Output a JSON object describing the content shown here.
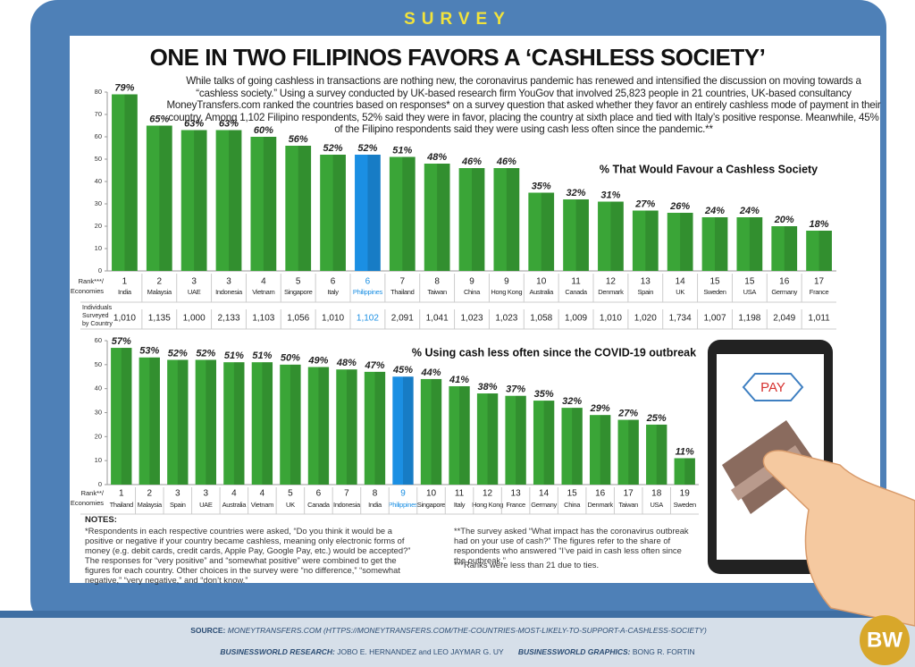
{
  "header": {
    "section": "SURVEY",
    "title": "ONE IN TWO FILIPINOS FAVORS A ‘CASHLESS SOCIETY’",
    "intro": "While talks of going cashless in transactions are nothing new, the coronavirus pandemic has renewed and intensified the discussion on moving towards a “cashless society.” Using a survey conducted by UK-based research firm YouGov that involved 25,823 people in 21 countries, UK-based consultancy MoneyTransfers.com ranked the countries based on responses* on a survey question that asked whether they favor an entirely cashless mode of payment in their country. Among 1,102 Filipino respondents, 52% said they were in favor, placing the country at sixth place and tied with Italy’s positive response. Meanwhile, 45% of the Filipino respondents said they were using cash less often since the pandemic.**"
  },
  "chart_data": [
    {
      "type": "bar",
      "title": "% That Would Favour a Cashless Society",
      "rank_label": [
        "Rank***/",
        "Economies"
      ],
      "ranks": [
        1,
        2,
        3,
        3,
        4,
        5,
        6,
        6,
        7,
        8,
        9,
        9,
        10,
        11,
        12,
        13,
        14,
        15,
        15,
        16,
        17
      ],
      "categories": [
        "India",
        "Malaysia",
        "UAE",
        "Indonesia",
        "Vietnam",
        "Singapore",
        "Italy",
        "Philippines",
        "Thailand",
        "Taiwan",
        "China",
        "Hong Kong",
        "Australia",
        "Canada",
        "Denmark",
        "Spain",
        "UK",
        "Sweden",
        "USA",
        "Germany",
        "France"
      ],
      "values": [
        79,
        65,
        63,
        63,
        60,
        56,
        52,
        52,
        51,
        48,
        46,
        46,
        35,
        32,
        31,
        27,
        26,
        24,
        24,
        20,
        18
      ],
      "value_labels": [
        "79%",
        "65%",
        "63%",
        "63%",
        "60%",
        "56%",
        "52%",
        "52%",
        "51%",
        "48%",
        "46%",
        "46%",
        "35%",
        "32%",
        "31%",
        "27%",
        "26%",
        "24%",
        "24%",
        "20%",
        "18%"
      ],
      "surveyed_label": [
        "Individuals",
        "Surveyed",
        "by Country"
      ],
      "surveyed": [
        "1,010",
        "1,135",
        "1,000",
        "2,133",
        "1,103",
        "1,056",
        "1,010",
        "1,102",
        "2,091",
        "1,041",
        "1,023",
        "1,023",
        "1,058",
        "1,009",
        "1,010",
        "1,020",
        "1,734",
        "1,007",
        "1,198",
        "2,049",
        "1,011"
      ],
      "ylim": [
        0,
        80
      ],
      "yticks": [
        0,
        10,
        20,
        30,
        40,
        50,
        60,
        70,
        80
      ],
      "color": "#3aa537",
      "highlight_category": "Philippines",
      "highlight_color": "#1b8fe3"
    },
    {
      "type": "bar",
      "title": "% Using cash less often since the COVID-19 outbreak",
      "rank_label": [
        "Rank**/",
        "Economies"
      ],
      "ranks": [
        1,
        2,
        3,
        3,
        4,
        4,
        5,
        6,
        7,
        8,
        9,
        10,
        11,
        12,
        13,
        14,
        15,
        16,
        17,
        18,
        19
      ],
      "categories": [
        "Thailand",
        "Malaysia",
        "Spain",
        "UAE",
        "Australia",
        "Vietnam",
        "UK",
        "Canada",
        "Indonesia",
        "India",
        "Philippines",
        "Singapore",
        "Italy",
        "Hong Kong",
        "France",
        "Germany",
        "China",
        "Denmark",
        "Taiwan",
        "USA",
        "Sweden"
      ],
      "values": [
        57,
        53,
        52,
        52,
        51,
        51,
        50,
        49,
        48,
        47,
        45,
        44,
        41,
        38,
        37,
        35,
        32,
        29,
        27,
        25,
        11
      ],
      "value_labels": [
        "57%",
        "53%",
        "52%",
        "52%",
        "51%",
        "51%",
        "50%",
        "49%",
        "48%",
        "47%",
        "45%",
        "44%",
        "41%",
        "38%",
        "37%",
        "35%",
        "32%",
        "29%",
        "27%",
        "25%",
        "11%"
      ],
      "ylim": [
        0,
        60
      ],
      "yticks": [
        0,
        10,
        20,
        30,
        40,
        50,
        60
      ],
      "color": "#3aa537",
      "highlight_category": "Philippines",
      "highlight_color": "#1b8fe3"
    }
  ],
  "phone": {
    "button": "PAY"
  },
  "notes": {
    "heading": "NOTES:",
    "items": [
      "*Respondents in each respective countries were asked, “Do you think it would be a positive or negative if your country became cashless, meaning only electronic forms of money (e.g. debit cards, credit cards, Apple Pay, Google Pay, etc.) would be accepted?” The responses for “very positive” and “somewhat positive” were combined to get the figures for each country. Other choices in the survey were “no difference,” “somewhat negative,” “very negative,” and “don’t know.”",
      "**The survey asked “What impact has the coronavirus outbreak had on your use of cash?” The figures refer to the share of respondents who answered “I’ve paid in cash less often since the outbreak.”",
      "***Ranks were less than 21 due to ties."
    ]
  },
  "footer": {
    "source_label": "SOURCE:",
    "source": "MONEYTRANSFERS.COM (HTTPS://MONEYTRANSFERS.COM/THE-COUNTRIES-MOST-LIKELY-TO-SUPPORT-A-CASHLESS-SOCIETY)",
    "research_label": "BUSINESSWORLD RESEARCH:",
    "research": "JOBO E. HERNANDEZ and LEO JAYMAR G. UY",
    "graphics_label": "BUSINESSWORLD GRAPHICS:",
    "graphics": "BONG R. FORTIN",
    "logo": "BW"
  }
}
